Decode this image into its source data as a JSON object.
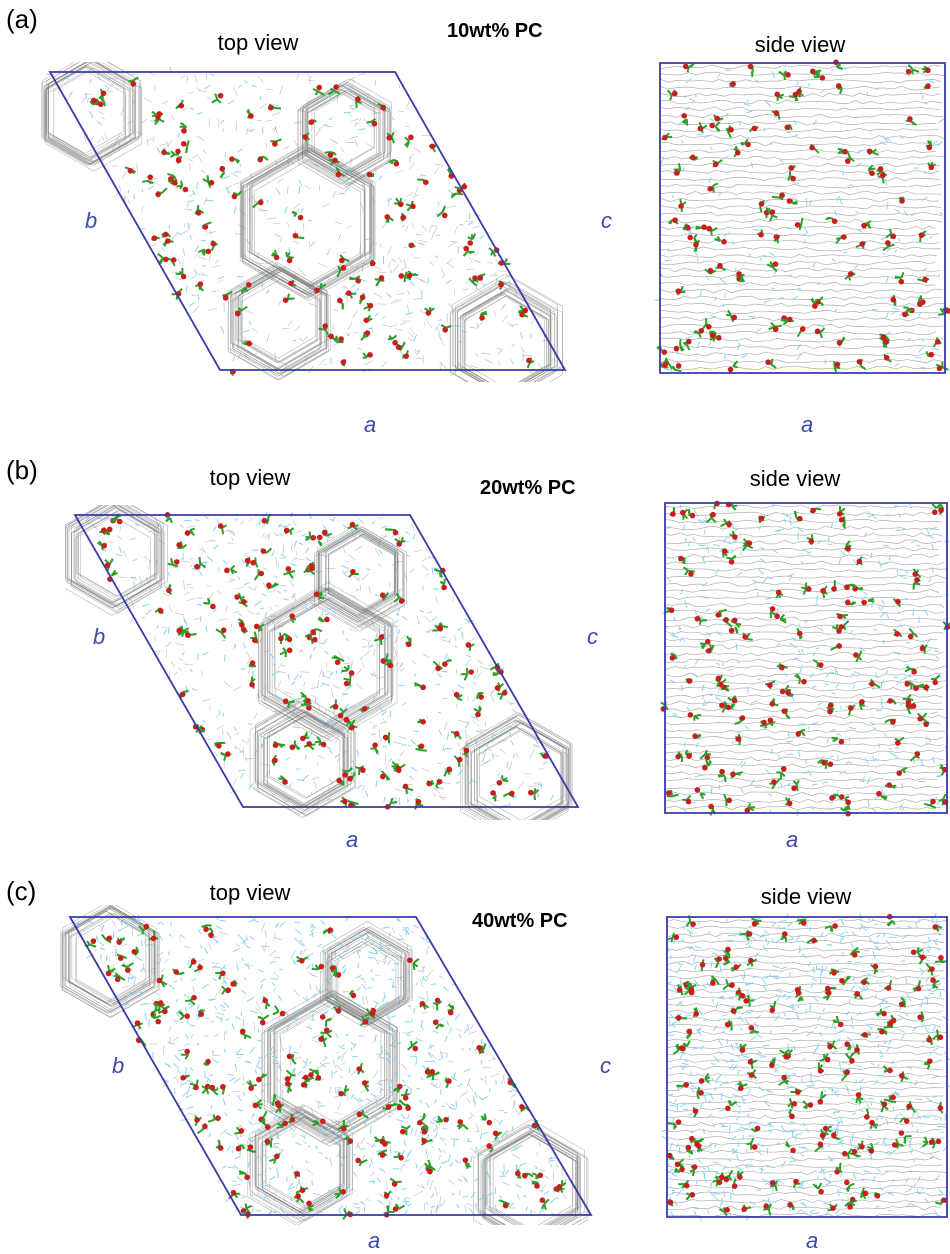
{
  "figure": {
    "frame_color": "#3a3aa8",
    "colors": {
      "framework": "#7a7a7a",
      "pc_carbon": "#2aa02a",
      "pc_oxygen": "#c81e1e",
      "ionic_liquid": "#7fd0ec"
    },
    "panels": [
      {
        "letter": "(a)",
        "top_title": "top view",
        "side_title": "side view",
        "concentration": "10wt% PC",
        "axes": {
          "top_left": "b",
          "top_bottom": "a",
          "side_left": "c",
          "side_bottom": "a"
        },
        "blue_density": 0.25,
        "pc_density": 0.7
      },
      {
        "letter": "(b)",
        "top_title": "top view",
        "side_title": "side view",
        "concentration": "20wt% PC",
        "axes": {
          "top_left": "b",
          "top_bottom": "a",
          "side_left": "c",
          "side_bottom": "a"
        },
        "blue_density": 0.45,
        "pc_density": 0.8
      },
      {
        "letter": "(c)",
        "top_title": "top view",
        "side_title": "side view",
        "concentration": "40wt% PC",
        "axes": {
          "top_left": "b",
          "top_bottom": "a",
          "side_left": "c",
          "side_bottom": "a"
        },
        "blue_density": 1.0,
        "pc_density": 0.9
      }
    ]
  }
}
